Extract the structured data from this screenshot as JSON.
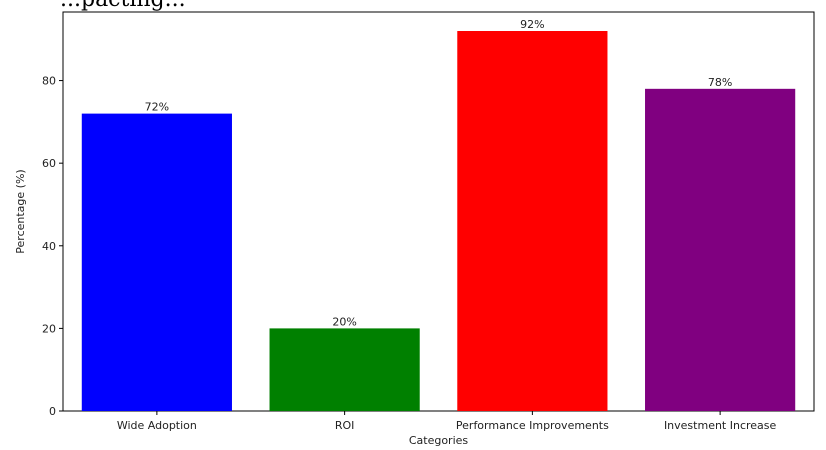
{
  "title_fragment": "...pacting...",
  "chart_data": {
    "type": "bar",
    "title": "...pacting...",
    "categories": [
      "Wide Adoption",
      "ROI",
      "Performance Improvements",
      "Investment Increase"
    ],
    "values": [
      72,
      20,
      92,
      78
    ],
    "value_labels": [
      "72%",
      "20%",
      "92%",
      "78%"
    ],
    "colors": [
      "#0000ff",
      "#008000",
      "#ff0000",
      "#800080"
    ],
    "xlabel": "Categories",
    "ylabel": "Percentage (%)",
    "ylim": [
      0,
      96.6
    ],
    "yticks": [
      0,
      20,
      40,
      60,
      80
    ],
    "grid": false
  }
}
